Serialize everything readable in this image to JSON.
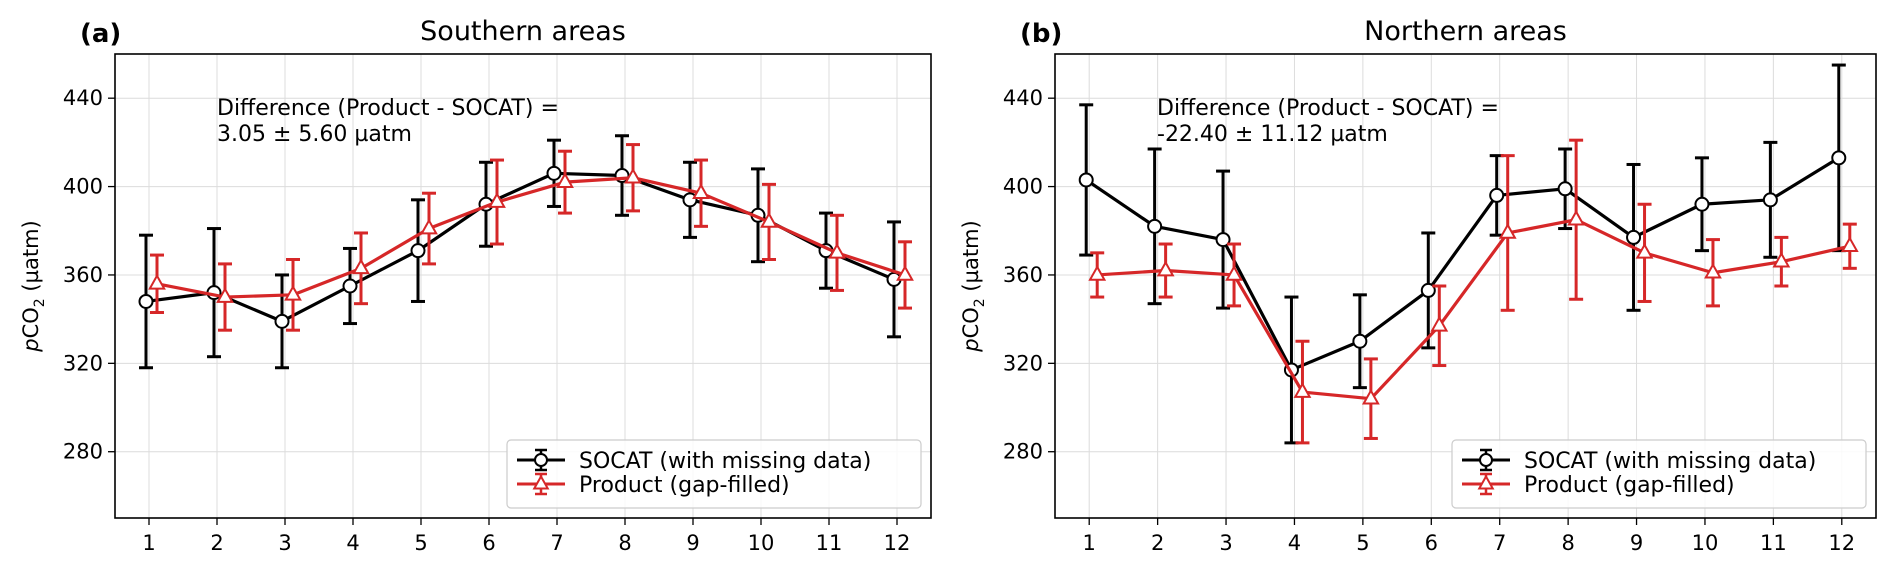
{
  "chart_data": [
    {
      "type": "line",
      "panel_label": "(a)",
      "title": "Southern areas",
      "ylabel": "pCO2 (µatm)",
      "ylabel_parts": {
        "italic": "p",
        "main": "CO",
        "sub": "2",
        "unit": " (µatm)"
      },
      "xlabel": "",
      "xlim": [
        0.5,
        12.5
      ],
      "ylim": [
        250,
        460
      ],
      "xticks": [
        1,
        2,
        3,
        4,
        5,
        6,
        7,
        8,
        9,
        10,
        11,
        12
      ],
      "yticks": [
        280,
        320,
        360,
        400,
        440
      ],
      "grid": true,
      "annotation": {
        "line1": "Difference (Product - SOCAT) =",
        "line2": " 3.05 ± 5.60 µatm"
      },
      "legend": {
        "placement": "lower-right"
      },
      "series": [
        {
          "name": "SOCAT (with missing data)",
          "color": "#000000",
          "marker": "circle",
          "x": [
            1,
            2,
            3,
            4,
            5,
            6,
            7,
            8,
            9,
            10,
            11,
            12
          ],
          "y": [
            348,
            352,
            339,
            355,
            371,
            392,
            406,
            405,
            394,
            387,
            371,
            358
          ],
          "err": [
            30,
            29,
            21,
            17,
            23,
            19,
            15,
            18,
            17,
            21,
            17,
            26
          ]
        },
        {
          "name": "Product (gap-filled)",
          "color": "#d62728",
          "marker": "triangle",
          "x": [
            1,
            2,
            3,
            4,
            5,
            6,
            7,
            8,
            9,
            10,
            11,
            12
          ],
          "y": [
            356,
            350,
            351,
            363,
            381,
            393,
            402,
            404,
            397,
            384,
            370,
            360
          ],
          "err": [
            13,
            15,
            16,
            16,
            16,
            19,
            14,
            15,
            15,
            17,
            17,
            15
          ]
        }
      ]
    },
    {
      "type": "line",
      "panel_label": "(b)",
      "title": "Northern areas",
      "ylabel": "pCO2 (µatm)",
      "ylabel_parts": {
        "italic": "p",
        "main": "CO",
        "sub": "2",
        "unit": " (µatm)"
      },
      "xlabel": "",
      "xlim": [
        0.5,
        12.5
      ],
      "ylim": [
        250,
        460
      ],
      "xticks": [
        1,
        2,
        3,
        4,
        5,
        6,
        7,
        8,
        9,
        10,
        11,
        12
      ],
      "yticks": [
        280,
        320,
        360,
        400,
        440
      ],
      "grid": true,
      "annotation": {
        "line1": "Difference (Product - SOCAT) =",
        "line2": " -22.40 ± 11.12 µatm"
      },
      "legend": {
        "placement": "lower-right"
      },
      "series": [
        {
          "name": "SOCAT (with missing data)",
          "color": "#000000",
          "marker": "circle",
          "x": [
            1,
            2,
            3,
            4,
            5,
            6,
            7,
            8,
            9,
            10,
            11,
            12
          ],
          "y": [
            403,
            382,
            376,
            317,
            330,
            353,
            396,
            399,
            377,
            392,
            394,
            413
          ],
          "err": [
            34,
            35,
            31,
            33,
            21,
            26,
            18,
            18,
            33,
            21,
            26,
            42
          ]
        },
        {
          "name": "Product (gap-filled)",
          "color": "#d62728",
          "marker": "triangle",
          "x": [
            1,
            2,
            3,
            4,
            5,
            6,
            7,
            8,
            9,
            10,
            11,
            12
          ],
          "y": [
            360,
            362,
            360,
            307,
            304,
            337,
            379,
            385,
            370,
            361,
            366,
            373
          ],
          "err": [
            10,
            12,
            14,
            23,
            18,
            18,
            35,
            36,
            22,
            15,
            11,
            10
          ]
        }
      ]
    }
  ]
}
